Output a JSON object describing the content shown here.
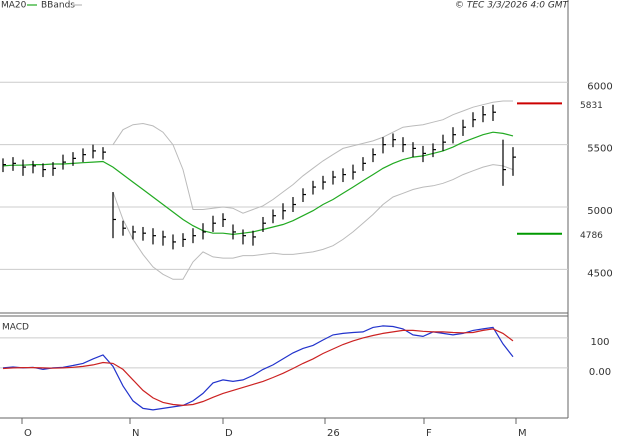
{
  "chart_data": [
    {
      "type": "ohlc",
      "source": "© TEC 3/3/2026 4:0 GMT",
      "xlim": [
        -0.3,
        56.5
      ],
      "ylim": [
        4150,
        6660
      ],
      "yticks": [
        4500,
        5000,
        5500,
        6000
      ],
      "grid": true,
      "bar_color": "#000000",
      "close": [
        5340,
        5350,
        5320,
        5330,
        5300,
        5310,
        5360,
        5390,
        5420,
        5450,
        5440,
        4900,
        4830,
        4800,
        4790,
        4770,
        4760,
        4720,
        4740,
        4770,
        4800,
        4870,
        4900,
        4800,
        4770,
        4760,
        4870,
        4930,
        4970,
        5020,
        5100,
        5160,
        5200,
        5240,
        5260,
        5280,
        5350,
        5420,
        5500,
        5540,
        5500,
        5470,
        5430,
        5460,
        5520,
        5580,
        5640,
        5700,
        5740,
        5760,
        5300,
        5400
      ],
      "high": [
        5390,
        5400,
        5380,
        5370,
        5350,
        5360,
        5420,
        5440,
        5470,
        5500,
        5480,
        5120,
        4890,
        4850,
        4840,
        4830,
        4810,
        4780,
        4790,
        4830,
        4870,
        4930,
        4950,
        4860,
        4820,
        4810,
        4920,
        4980,
        5030,
        5080,
        5150,
        5210,
        5250,
        5290,
        5310,
        5340,
        5400,
        5470,
        5560,
        5590,
        5560,
        5520,
        5490,
        5510,
        5580,
        5640,
        5700,
        5760,
        5810,
        5820,
        5540,
        5480
      ],
      "low": [
        5280,
        5290,
        5250,
        5270,
        5240,
        5250,
        5300,
        5330,
        5360,
        5390,
        5380,
        4750,
        4770,
        4740,
        4730,
        4700,
        4690,
        4660,
        4680,
        4710,
        4740,
        4800,
        4840,
        4740,
        4700,
        4690,
        4800,
        4870,
        4900,
        4960,
        5040,
        5100,
        5140,
        5180,
        5200,
        5220,
        5290,
        5360,
        5430,
        5480,
        5440,
        5400,
        5360,
        5400,
        5450,
        5510,
        5570,
        5640,
        5680,
        5690,
        5170,
        5250
      ],
      "ma": {
        "name": "MA20",
        "color": "#22aa22",
        "values": [
          5330,
          5335,
          5335,
          5340,
          5340,
          5345,
          5345,
          5350,
          5355,
          5360,
          5365,
          5320,
          5260,
          5200,
          5140,
          5080,
          5020,
          4960,
          4900,
          4850,
          4810,
          4790,
          4790,
          4780,
          4790,
          4800,
          4820,
          4840,
          4860,
          4890,
          4930,
          4970,
          5020,
          5060,
          5110,
          5160,
          5210,
          5260,
          5310,
          5350,
          5380,
          5400,
          5410,
          5430,
          5450,
          5480,
          5520,
          5550,
          5580,
          5600,
          5590,
          5570
        ]
      },
      "bbands": {
        "name": "BBands",
        "color": "#bbbbbb",
        "upper": [
          null,
          null,
          null,
          null,
          null,
          null,
          null,
          null,
          null,
          null,
          null,
          5500,
          5620,
          5660,
          5670,
          5650,
          5600,
          5500,
          5300,
          4980,
          4980,
          4990,
          5000,
          4990,
          4950,
          4980,
          5010,
          5060,
          5120,
          5180,
          5250,
          5310,
          5370,
          5420,
          5470,
          5490,
          5510,
          5530,
          5560,
          5600,
          5640,
          5650,
          5660,
          5680,
          5700,
          5740,
          5770,
          5800,
          5820,
          5840,
          5850,
          5850
        ],
        "lower": [
          null,
          null,
          null,
          null,
          null,
          null,
          null,
          null,
          null,
          null,
          null,
          5120,
          4900,
          4740,
          4620,
          4520,
          4460,
          4420,
          4420,
          4560,
          4640,
          4600,
          4590,
          4590,
          4610,
          4610,
          4620,
          4630,
          4620,
          4620,
          4630,
          4640,
          4660,
          4690,
          4740,
          4800,
          4870,
          4940,
          5020,
          5080,
          5110,
          5140,
          5160,
          5170,
          5190,
          5220,
          5260,
          5290,
          5320,
          5340,
          5330,
          5300
        ]
      },
      "levels": [
        {
          "value": 5831,
          "color": "#cc0000"
        },
        {
          "value": 4786,
          "color": "#009900"
        }
      ]
    },
    {
      "type": "line",
      "title": "MACD",
      "xlim": [
        -0.3,
        56.5
      ],
      "ylim": [
        -167,
        173
      ],
      "yticks": [
        {
          "value": 0,
          "label": "0.00"
        },
        100
      ],
      "grid": true,
      "xticks": [
        {
          "value": 1.9,
          "label": "O"
        },
        {
          "value": 12.7,
          "label": "N"
        },
        {
          "value": 22,
          "label": "D"
        },
        {
          "value": 32.2,
          "label": "26"
        },
        {
          "value": 42.1,
          "label": "F"
        },
        {
          "value": 51.3,
          "label": "M"
        }
      ],
      "series": [
        {
          "color": "#2233cc",
          "values": [
            0,
            3,
            0,
            2,
            -5,
            0,
            2,
            8,
            15,
            30,
            43,
            5,
            -60,
            -110,
            -135,
            -140,
            -135,
            -130,
            -125,
            -110,
            -85,
            -50,
            -40,
            -45,
            -40,
            -25,
            -5,
            10,
            30,
            50,
            65,
            75,
            93,
            110,
            115,
            118,
            120,
            135,
            140,
            138,
            130,
            110,
            105,
            120,
            115,
            110,
            115,
            125,
            130,
            135,
            80,
            37
          ]
        },
        {
          "color": "#cc2222",
          "values": [
            -2,
            0,
            1,
            1,
            0,
            -1,
            0,
            2,
            5,
            10,
            18,
            15,
            -5,
            -40,
            -75,
            -100,
            -115,
            -122,
            -125,
            -122,
            -112,
            -98,
            -85,
            -75,
            -65,
            -55,
            -45,
            -32,
            -18,
            -2,
            15,
            30,
            48,
            63,
            78,
            90,
            100,
            108,
            115,
            120,
            125,
            125,
            122,
            120,
            120,
            118,
            117,
            118,
            125,
            130,
            115,
            90
          ]
        }
      ]
    }
  ]
}
